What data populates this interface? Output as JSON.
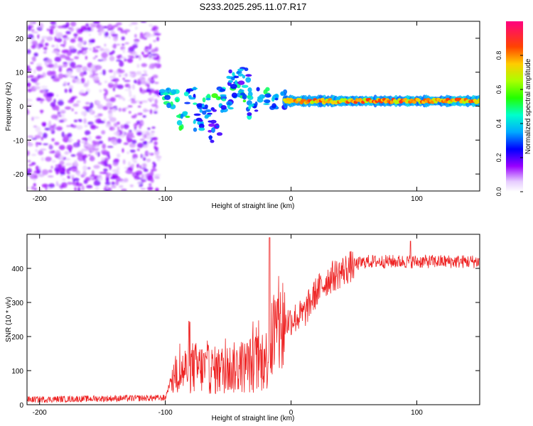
{
  "title": "S233.2025.295.11.07.R17",
  "chart_data": [
    {
      "type": "heatmap",
      "xlabel": "Height of straight line (km)",
      "ylabel": "Frequency (Hz)",
      "xlim": [
        -210,
        150
      ],
      "ylim": [
        -25,
        25
      ],
      "xticks": [
        -200,
        -100,
        0,
        100
      ],
      "yticks": [
        -20,
        -10,
        0,
        10,
        20
      ],
      "colorbar": {
        "label": "Normalized spectral amplitude",
        "range": [
          0,
          1
        ],
        "ticks": [
          0.0,
          0.2,
          0.4,
          0.6,
          0.8
        ],
        "colors": [
          "#ffffff",
          "#b380ff",
          "#6a00ff",
          "#0000ff",
          "#00c8ff",
          "#00ff80",
          "#aaff00",
          "#ffaa00",
          "#ff0000",
          "#ff0080"
        ]
      },
      "regions": [
        {
          "name": "noise",
          "x_range": [
            -210,
            -105
          ],
          "freq_range": [
            -25,
            25
          ],
          "amplitude": 0.1
        },
        {
          "name": "transition-blobs",
          "x_range": [
            -105,
            -5
          ],
          "freq_range": [
            -8,
            10
          ],
          "amplitude": 0.35
        },
        {
          "name": "steady-carrier",
          "x_range": [
            -5,
            150
          ],
          "freq": 1.5,
          "amplitude": 0.85
        }
      ]
    },
    {
      "type": "line",
      "xlabel": "Height of straight line (km)",
      "ylabel": "SNR (10 * v/v)",
      "xlim": [
        -210,
        150
      ],
      "ylim": [
        0,
        500
      ],
      "xticks": [
        -200,
        -100,
        0,
        100
      ],
      "yticks": [
        0,
        100,
        200,
        300,
        400
      ],
      "color": "#ee2222",
      "profile_x": [
        -210,
        -150,
        -100,
        -95,
        -80,
        -60,
        -40,
        -20,
        -15,
        -10,
        -5,
        0,
        10,
        20,
        30,
        40,
        50,
        60,
        80,
        100,
        150
      ],
      "profile_y": [
        15,
        18,
        20,
        80,
        110,
        100,
        110,
        130,
        200,
        220,
        240,
        250,
        265,
        330,
        370,
        390,
        410,
        420,
        420,
        420,
        420
      ],
      "spikes": [
        {
          "x": -17,
          "y": 490
        },
        {
          "x": 95,
          "y": 480
        }
      ]
    }
  ]
}
